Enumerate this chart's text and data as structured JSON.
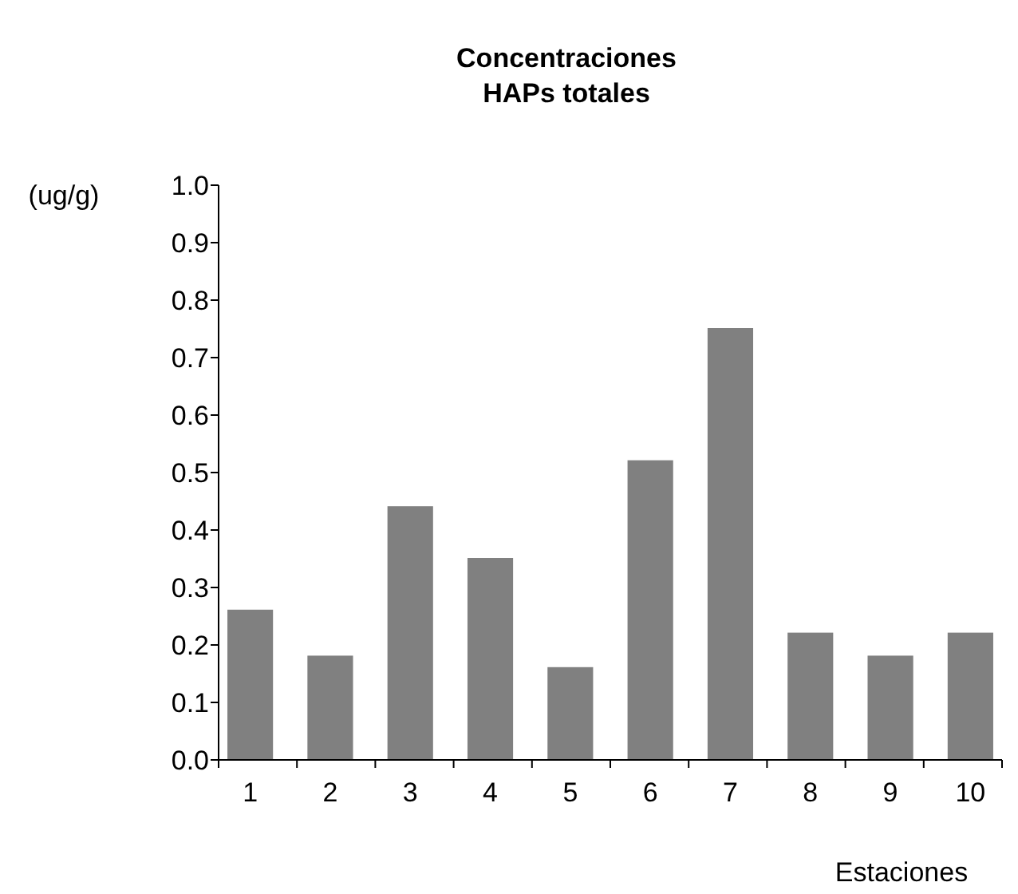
{
  "chart_data": {
    "type": "bar",
    "title": "Concentraciones\nHAPs totales",
    "ylabel": "(ug/g)",
    "xlabel": "Estaciones",
    "categories": [
      "1",
      "2",
      "3",
      "4",
      "5",
      "6",
      "7",
      "8",
      "9",
      "10"
    ],
    "values": [
      0.26,
      0.18,
      0.44,
      0.35,
      0.16,
      0.52,
      0.75,
      0.22,
      0.18,
      0.22
    ],
    "color": "#808080",
    "ylim": [
      0,
      1
    ],
    "yticks": [
      {
        "value": 0,
        "label": "0.0"
      },
      {
        "value": 0.1,
        "label": "0.1"
      },
      {
        "value": 0.2,
        "label": "0.2"
      },
      {
        "value": 0.3,
        "label": "0.3"
      },
      {
        "value": 0.4,
        "label": "0.4"
      },
      {
        "value": 0.5,
        "label": "0.5"
      },
      {
        "value": 0.6,
        "label": "0.6"
      },
      {
        "value": 0.7,
        "label": "0.7"
      },
      {
        "value": 0.8,
        "label": "0.8"
      },
      {
        "value": 0.9,
        "label": "0.9"
      },
      {
        "value": 1,
        "label": "1.0"
      }
    ],
    "grid": false
  }
}
